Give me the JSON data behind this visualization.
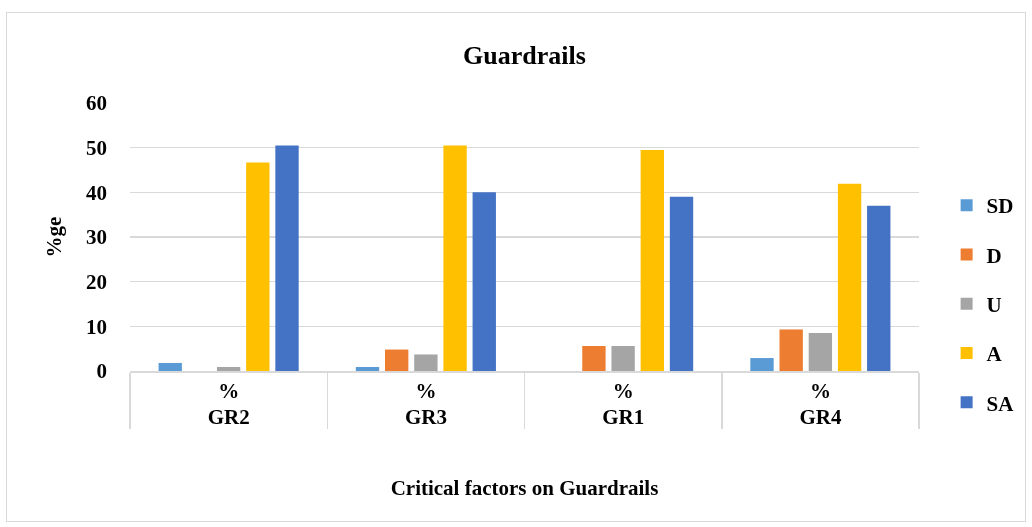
{
  "chart_data": {
    "type": "bar",
    "title": "Guardrails",
    "xlabel": "Critical factors on Guardrails",
    "ylabel": "%ge",
    "categories": [
      "%\nGR2",
      "%\nGR3",
      "%\nGR1",
      "%\nGR4"
    ],
    "series": [
      {
        "name": "SD",
        "color": "#5b9bd5",
        "values": [
          1.8,
          0.9,
          0,
          2.9
        ]
      },
      {
        "name": "D",
        "color": "#ed7d31",
        "values": [
          0,
          4.8,
          5.6,
          9.3
        ]
      },
      {
        "name": "U",
        "color": "#a5a5a5",
        "values": [
          0.9,
          3.7,
          5.6,
          8.5
        ]
      },
      {
        "name": "A",
        "color": "#ffc000",
        "values": [
          46.7,
          50.5,
          49.5,
          41.9
        ]
      },
      {
        "name": "SA",
        "color": "#4472c4",
        "values": [
          50.5,
          40.0,
          39.0,
          37.0
        ]
      }
    ],
    "ylim": [
      0,
      60
    ],
    "yticks": [
      0,
      10,
      20,
      30,
      40,
      50,
      60
    ],
    "grid": "y",
    "legend": "right"
  }
}
